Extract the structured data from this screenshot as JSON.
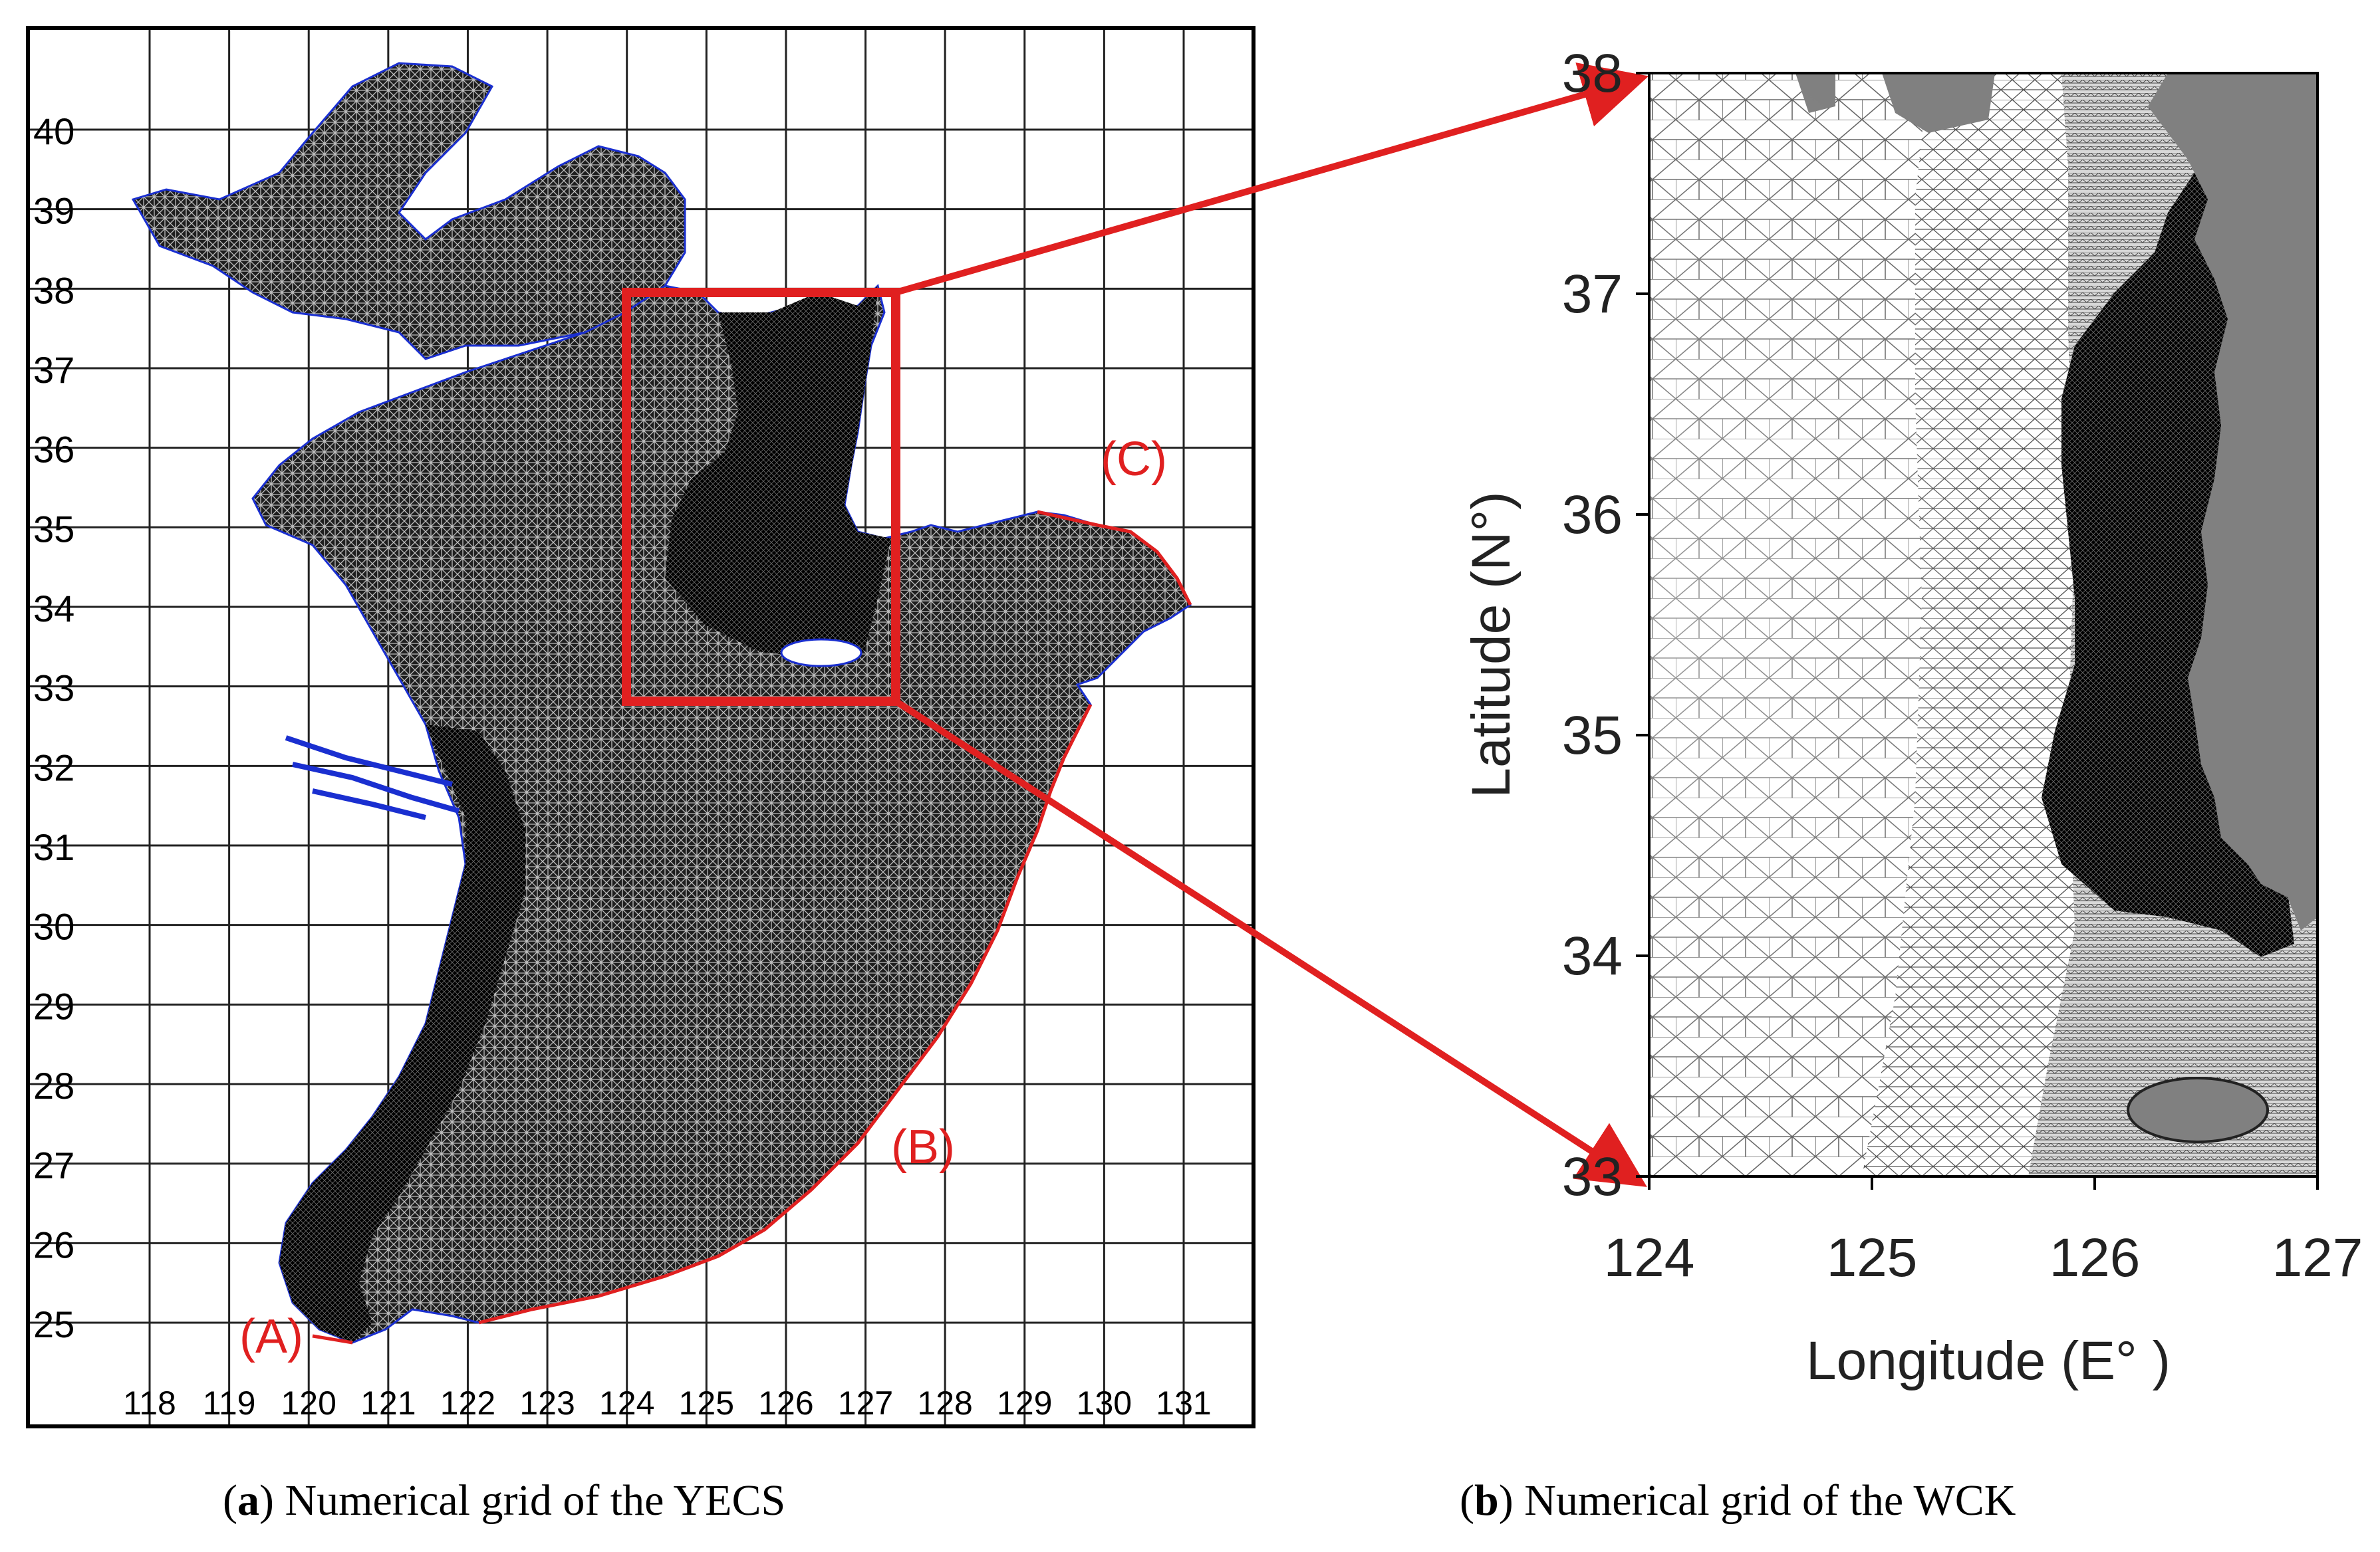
{
  "panel_a": {
    "lat_ticks": [
      "25",
      "26",
      "27",
      "28",
      "29",
      "30",
      "31",
      "32",
      "33",
      "34",
      "35",
      "36",
      "37",
      "38",
      "39",
      "40"
    ],
    "lon_ticks": [
      "118",
      "119",
      "120",
      "121",
      "122",
      "123",
      "124",
      "125",
      "126",
      "127",
      "128",
      "129",
      "130",
      "131"
    ],
    "boundary_labels": [
      "(A)",
      "(B)",
      "(C)"
    ],
    "caption_letter": "a",
    "caption_text": " Numerical grid of the YECS"
  },
  "panel_b": {
    "lat_ticks": [
      "33",
      "34",
      "35",
      "36",
      "37",
      "38"
    ],
    "lon_ticks": [
      "124",
      "125",
      "126",
      "127"
    ],
    "ylabel": "Latitude (N°)",
    "xlabel": "Longitude (E° )",
    "caption_letter": "b",
    "caption_text": " Numerical grid of the WCK"
  },
  "colors": {
    "grid_mesh": "#000000",
    "land": "#808080",
    "open_boundary": "#e02020",
    "highlight_box": "#e02020",
    "coastline": "#1a2fd0"
  }
}
